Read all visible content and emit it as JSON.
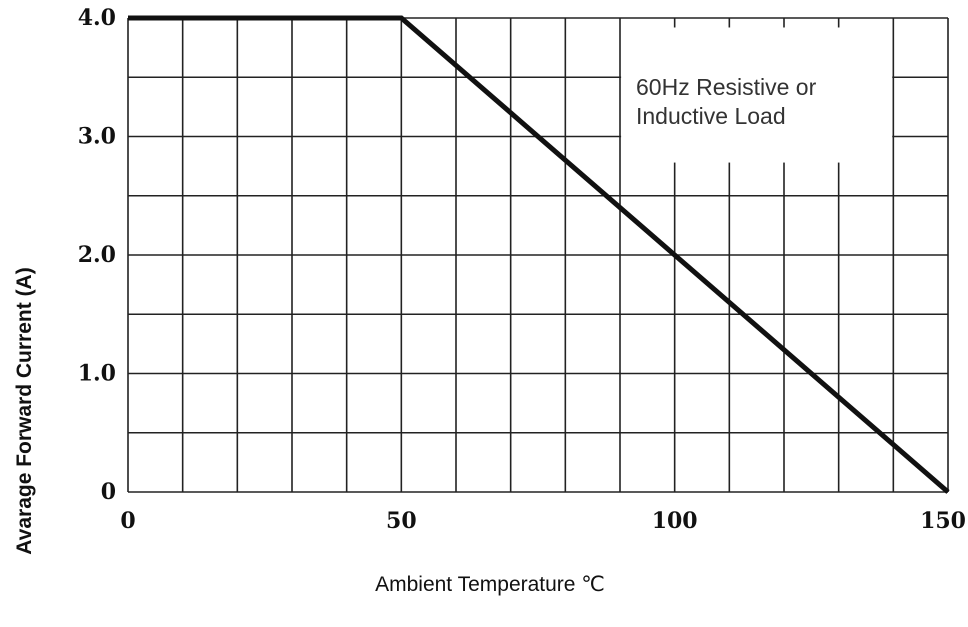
{
  "chart_data": {
    "type": "line",
    "title": "",
    "xlabel": "Ambient Temperature ℃",
    "ylabel": "Avarage Forward Current (A)",
    "xlim": [
      0,
      150
    ],
    "ylim": [
      0,
      4.0
    ],
    "grid": true,
    "x_gridlines": [
      0,
      10,
      20,
      30,
      40,
      50,
      60,
      70,
      80,
      90,
      100,
      110,
      120,
      130,
      140,
      150
    ],
    "y_gridlines": [
      0,
      0.5,
      1.0,
      1.5,
      2.0,
      2.5,
      3.0,
      3.5,
      4.0
    ],
    "x_ticks": [
      {
        "value": 0,
        "label": "0"
      },
      {
        "value": 50,
        "label": "50"
      },
      {
        "value": 100,
        "label": "100"
      },
      {
        "value": 150,
        "label": "150"
      }
    ],
    "y_ticks": [
      {
        "value": 0,
        "label": "0"
      },
      {
        "value": 1.0,
        "label": "1.0"
      },
      {
        "value": 2.0,
        "label": "2.0"
      },
      {
        "value": 3.0,
        "label": "3.0"
      },
      {
        "value": 4.0,
        "label": "4.0"
      }
    ],
    "series": [
      {
        "x": [
          0,
          50,
          150
        ],
        "y": [
          4.0,
          4.0,
          0
        ]
      }
    ],
    "annotation": {
      "lines": [
        "60Hz Resistive or",
        "Inductive Load"
      ]
    },
    "colors": {
      "line": "#111111",
      "grid": "#222222",
      "background": "#ffffff"
    }
  }
}
